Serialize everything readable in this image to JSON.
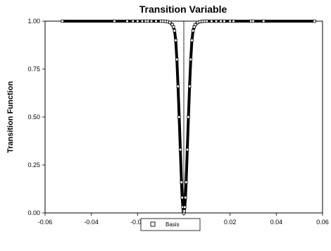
{
  "chart_data": {
    "type": "scatter",
    "title": "Transition Variable",
    "xlabel": "",
    "ylabel": "Transition Function",
    "xlim": [
      -0.06,
      0.06
    ],
    "ylim": [
      0.0,
      1.0
    ],
    "x_ticks": [
      "-0.06",
      "-0.04",
      "-0.02",
      "0.00",
      "0.02",
      "0.04",
      "0.06"
    ],
    "y_ticks": [
      "0.00",
      "0.25",
      "0.50",
      "0.75",
      "1.00"
    ],
    "grid": false,
    "legend_position": "bottom-center",
    "marker": "hollow-square",
    "series": [
      {
        "name": "Basis",
        "color": "#000000",
        "points": [
          [
            -0.0525,
            1.0
          ],
          [
            -0.03,
            1.0
          ],
          [
            -0.0245,
            1.0
          ],
          [
            -0.022,
            1.0
          ],
          [
            -0.02,
            1.0
          ],
          [
            -0.018,
            1.0
          ],
          [
            -0.0165,
            1.0
          ],
          [
            -0.0155,
            1.0
          ],
          [
            -0.014,
            1.0
          ],
          [
            -0.012,
            1.0
          ],
          [
            -0.01,
            1.0
          ],
          [
            -0.009,
            1.0
          ],
          [
            -0.008,
            0.999
          ],
          [
            -0.007,
            0.997
          ],
          [
            -0.006,
            0.993
          ],
          [
            -0.005,
            0.982
          ],
          [
            -0.0045,
            0.97
          ],
          [
            -0.004,
            0.95
          ],
          [
            -0.0035,
            0.9
          ],
          [
            -0.003,
            0.8
          ],
          [
            -0.0025,
            0.66
          ],
          [
            -0.002,
            0.5
          ],
          [
            -0.0015,
            0.33
          ],
          [
            -0.001,
            0.16
          ],
          [
            -0.0007,
            0.08
          ],
          [
            -0.0004,
            0.03
          ],
          [
            -0.0002,
            0.01
          ],
          [
            0.0,
            0.0
          ],
          [
            0.0002,
            0.01
          ],
          [
            0.0004,
            0.03
          ],
          [
            0.0007,
            0.08
          ],
          [
            0.001,
            0.16
          ],
          [
            0.0015,
            0.33
          ],
          [
            0.002,
            0.5
          ],
          [
            0.0025,
            0.66
          ],
          [
            0.003,
            0.8
          ],
          [
            0.0035,
            0.9
          ],
          [
            0.004,
            0.95
          ],
          [
            0.0045,
            0.97
          ],
          [
            0.005,
            0.982
          ],
          [
            0.006,
            0.993
          ],
          [
            0.007,
            0.997
          ],
          [
            0.008,
            0.999
          ],
          [
            0.009,
            1.0
          ],
          [
            0.01,
            1.0
          ],
          [
            0.012,
            1.0
          ],
          [
            0.014,
            1.0
          ],
          [
            0.016,
            1.0
          ],
          [
            0.0175,
            1.0
          ],
          [
            0.02,
            1.0
          ],
          [
            0.0215,
            1.0
          ],
          [
            0.029,
            1.0
          ],
          [
            0.03,
            1.0
          ],
          [
            0.0345,
            1.0
          ],
          [
            0.0565,
            1.0
          ]
        ]
      }
    ]
  }
}
